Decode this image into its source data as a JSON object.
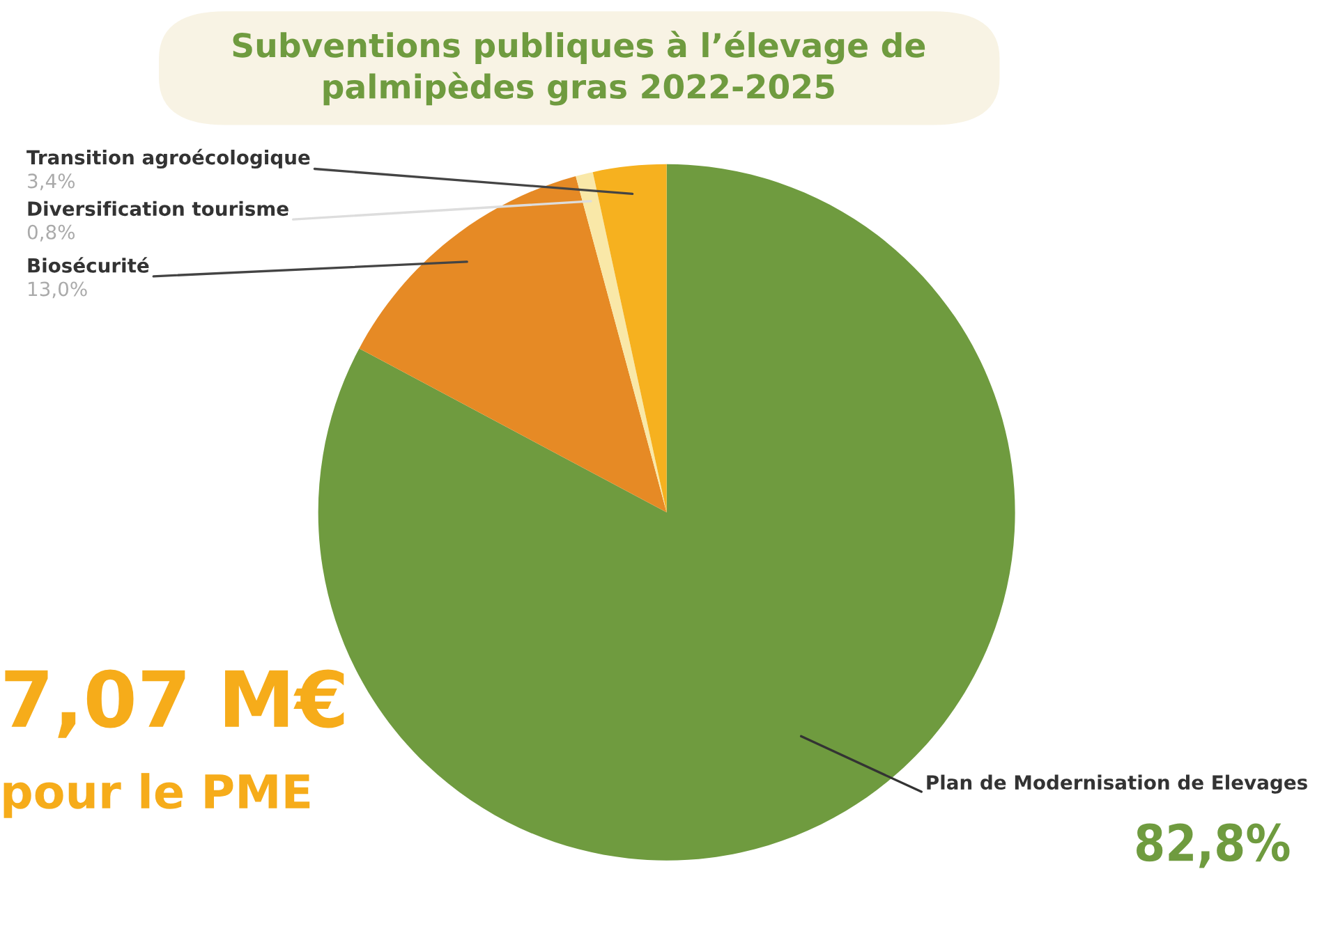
{
  "chart_data": {
    "type": "pie",
    "title": "Subventions publiques à l’élevage de\npalmipèdes gras 2022-2025",
    "categories": [
      "Plan de Modernisation de Elevages",
      "Biosécurité",
      "Diversification tourisme",
      "Transition agroécologique"
    ],
    "values": [
      82.8,
      13.0,
      0.8,
      3.4
    ],
    "value_labels": [
      "82,8%",
      "13,0%",
      "0,8%",
      "3,4%"
    ],
    "colors": [
      "#6f9b3f",
      "#e68a25",
      "#f9e8a8",
      "#f6b11f"
    ],
    "annotations": [
      "7,07 M€",
      "pour le PME"
    ],
    "legend": false
  }
}
